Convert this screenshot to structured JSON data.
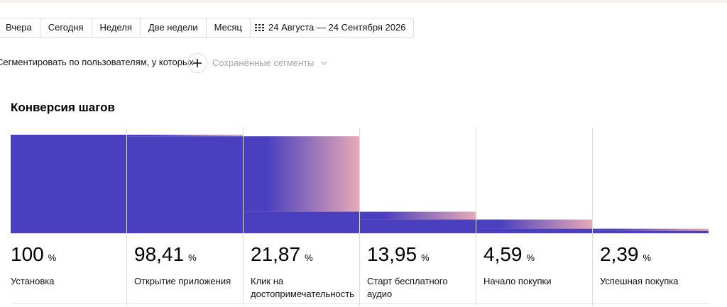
{
  "toolbar": {
    "periods": [
      "Вчера",
      "Сегодня",
      "Неделя",
      "Две недели",
      "Месяц"
    ],
    "date_range": "24 Августа — 24 Сентября 2026"
  },
  "segments": {
    "label": "Сегментировать по пользователям, у которых",
    "saved_label": "Сохранённые сегменты"
  },
  "colors": {
    "bar": "#4a3fbf",
    "gradient_end": "#e7a9b6",
    "divider": "#dcdcdc"
  },
  "chart_data": {
    "type": "bar",
    "title": "Конверсия шагов",
    "unit": "%",
    "ylim": [
      0,
      100
    ],
    "categories": [
      "Установка",
      "Открытие приложения",
      "Клик на достопримечательность",
      "Старт бесплатного аудио",
      "Начало покупки",
      "Успешная покупка"
    ],
    "values": [
      100,
      98.41,
      21.87,
      13.95,
      4.59,
      2.39
    ],
    "value_labels": [
      "100",
      "98,41",
      "21,87",
      "13,95",
      "4,59",
      "2,39"
    ]
  }
}
